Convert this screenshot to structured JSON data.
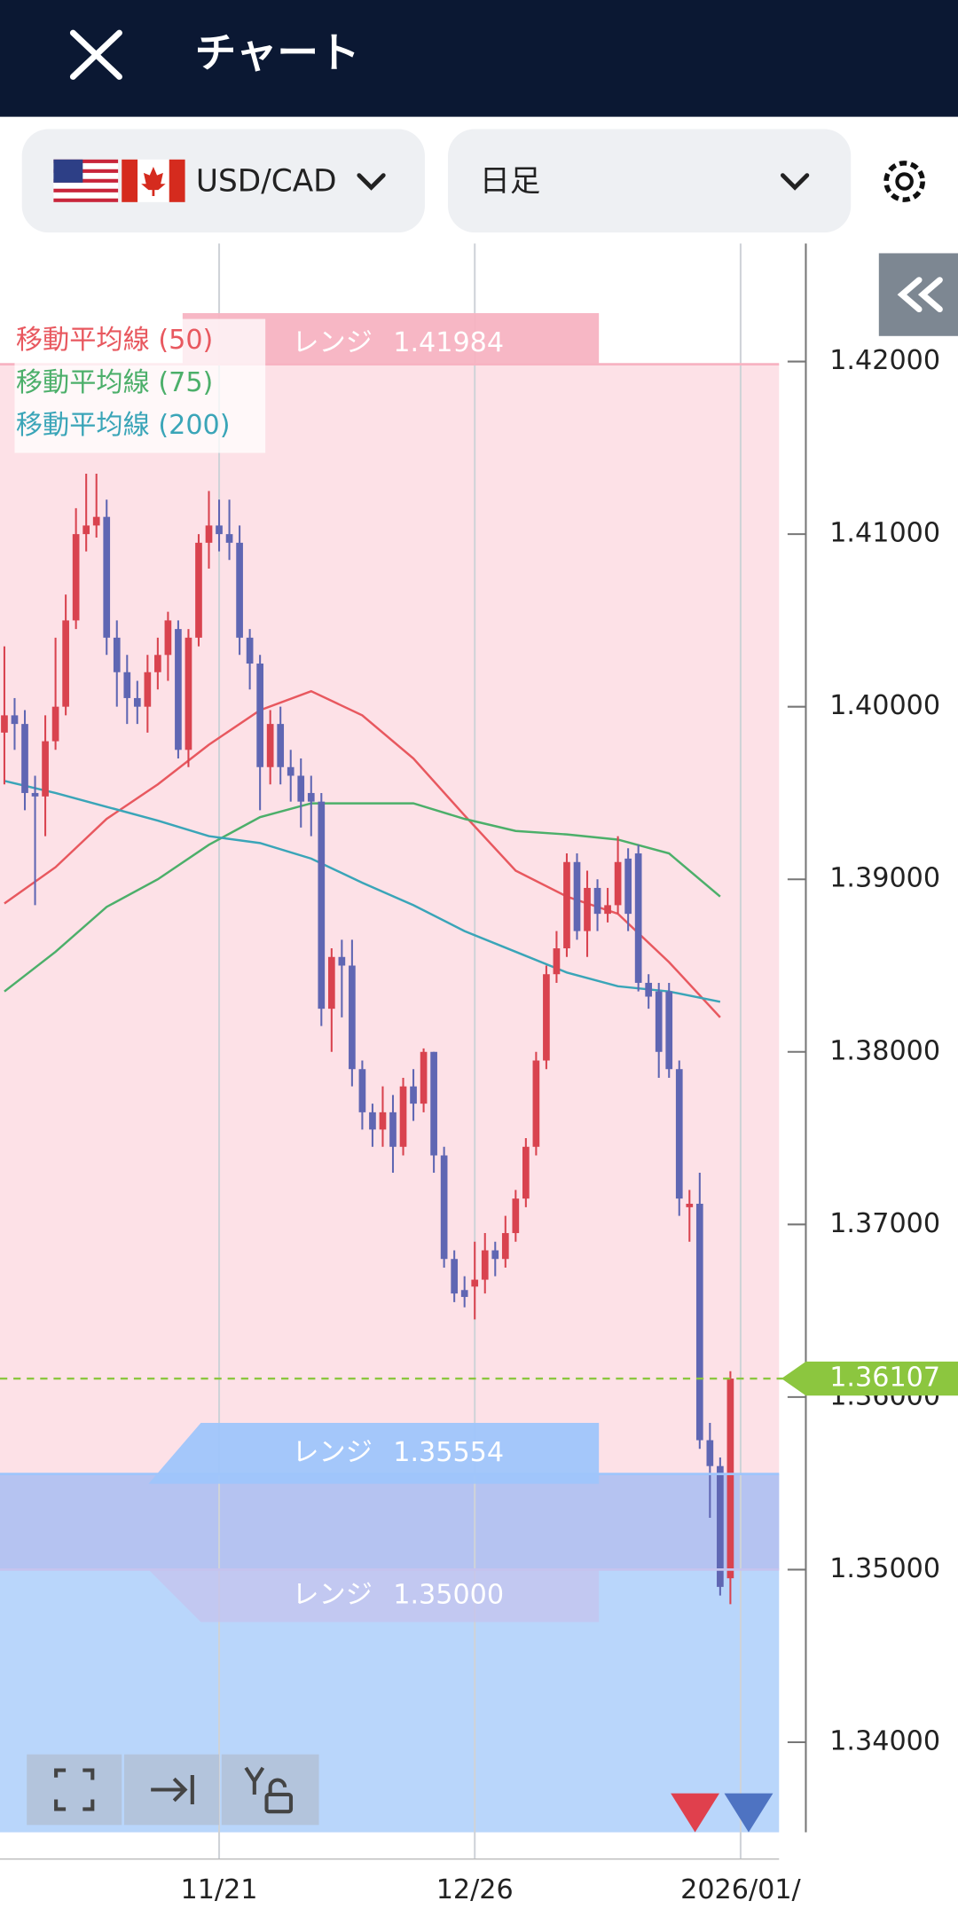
{
  "header": {
    "title": "チャート"
  },
  "toolbar": {
    "pair": "USD/CAD",
    "timeframe": "日足"
  },
  "chart_data": {
    "type": "candlestick",
    "up_color": "#d9434f",
    "down_color": "#5f66b3",
    "open": [
      1.3985,
      1.3995,
      1.399,
      1.395,
      1.3948,
      1.398,
      1.4,
      1.405,
      1.41,
      1.4105,
      1.411,
      1.404,
      1.402,
      1.4005,
      1.4,
      1.402,
      1.403,
      1.4045,
      1.3975,
      1.404,
      1.4095,
      1.4105,
      1.41,
      1.4095,
      1.404,
      1.4025,
      1.3965,
      1.399,
      1.3965,
      1.396,
      1.395,
      1.3945,
      1.3825,
      1.3855,
      1.385,
      1.379,
      1.3765,
      1.3755,
      1.3765,
      1.3745,
      1.378,
      1.377,
      1.38,
      1.374,
      1.368,
      1.3662,
      1.3664,
      1.3668,
      1.3685,
      1.368,
      1.3695,
      1.3715,
      1.3745,
      1.3795,
      1.3845,
      1.386,
      1.391,
      1.387,
      1.3895,
      1.388,
      1.3885,
      1.3912,
      1.3915,
      1.384,
      1.3835,
      1.3835,
      1.379,
      1.371,
      1.3712,
      1.3575,
      1.356,
      1.3495
    ],
    "high": [
      1.4035,
      1.4005,
      1.3998,
      1.396,
      1.3995,
      1.404,
      1.4065,
      1.4115,
      1.4135,
      1.4135,
      1.412,
      1.405,
      1.403,
      1.4015,
      1.403,
      1.404,
      1.4055,
      1.405,
      1.4045,
      1.41,
      1.4125,
      1.412,
      1.412,
      1.4105,
      1.4045,
      1.403,
      1.3998,
      1.4,
      1.3975,
      1.397,
      1.396,
      1.395,
      1.386,
      1.3865,
      1.3865,
      1.3795,
      1.377,
      1.378,
      1.3775,
      1.3785,
      1.379,
      1.3802,
      1.38,
      1.3745,
      1.3685,
      1.367,
      1.369,
      1.3695,
      1.369,
      1.3705,
      1.372,
      1.375,
      1.38,
      1.385,
      1.387,
      1.3915,
      1.3915,
      1.3905,
      1.39,
      1.3895,
      1.3925,
      1.3918,
      1.392,
      1.3845,
      1.384,
      1.384,
      1.3795,
      1.372,
      1.373,
      1.3585,
      1.3565,
      1.3615
    ],
    "low": [
      1.3955,
      1.3975,
      1.394,
      1.3885,
      1.3925,
      1.3975,
      1.3995,
      1.4045,
      1.409,
      1.4098,
      1.403,
      1.4,
      1.399,
      1.399,
      1.3985,
      1.401,
      1.4015,
      1.397,
      1.3965,
      1.4035,
      1.408,
      1.409,
      1.4085,
      1.403,
      1.401,
      1.394,
      1.3955,
      1.3955,
      1.3945,
      1.393,
      1.3925,
      1.3815,
      1.38,
      1.382,
      1.378,
      1.3755,
      1.3745,
      1.3745,
      1.373,
      1.374,
      1.376,
      1.3765,
      1.373,
      1.3675,
      1.3655,
      1.3652,
      1.3645,
      1.366,
      1.367,
      1.3675,
      1.369,
      1.371,
      1.374,
      1.379,
      1.384,
      1.3855,
      1.3865,
      1.3855,
      1.387,
      1.3875,
      1.388,
      1.387,
      1.3835,
      1.3825,
      1.3785,
      1.3785,
      1.3705,
      1.369,
      1.357,
      1.353,
      1.3485,
      1.348
    ],
    "close": [
      1.3995,
      1.399,
      1.395,
      1.3948,
      1.398,
      1.4,
      1.405,
      1.41,
      1.4105,
      1.411,
      1.404,
      1.402,
      1.4005,
      1.4,
      1.402,
      1.403,
      1.405,
      1.3975,
      1.404,
      1.4095,
      1.4105,
      1.41,
      1.4095,
      1.404,
      1.4025,
      1.3965,
      1.399,
      1.3965,
      1.396,
      1.3945,
      1.3945,
      1.3825,
      1.3855,
      1.385,
      1.379,
      1.3765,
      1.3755,
      1.3765,
      1.3745,
      1.378,
      1.377,
      1.38,
      1.374,
      1.368,
      1.366,
      1.3658,
      1.3668,
      1.3685,
      1.368,
      1.3695,
      1.3715,
      1.3745,
      1.3795,
      1.3845,
      1.386,
      1.391,
      1.387,
      1.3895,
      1.388,
      1.3885,
      1.391,
      1.388,
      1.384,
      1.3832,
      1.38,
      1.379,
      1.3715,
      1.3712,
      1.3575,
      1.356,
      1.349,
      1.36107
    ],
    "series": [
      {
        "name": "移動平均線 (50)",
        "color": "#e8585f",
        "x": [
          0,
          5,
          10,
          15,
          20,
          25,
          30,
          35,
          40,
          45,
          50,
          55,
          60,
          65,
          70
        ],
        "values": [
          1.3886,
          1.3907,
          1.3935,
          1.3955,
          1.3978,
          1.3998,
          1.4009,
          1.3995,
          1.397,
          1.3937,
          1.3905,
          1.389,
          1.388,
          1.3852,
          1.382
        ]
      },
      {
        "name": "移動平均線 (75)",
        "color": "#4caf6a",
        "x": [
          0,
          5,
          10,
          15,
          20,
          25,
          30,
          35,
          40,
          45,
          50,
          55,
          60,
          65,
          70
        ],
        "values": [
          1.3835,
          1.3858,
          1.3884,
          1.39,
          1.392,
          1.3936,
          1.3944,
          1.3944,
          1.3944,
          1.3935,
          1.3928,
          1.3926,
          1.3923,
          1.3915,
          1.389
        ]
      },
      {
        "name": "移動平均線 (200)",
        "color": "#3aa5b8",
        "x": [
          0,
          5,
          10,
          15,
          20,
          25,
          30,
          35,
          40,
          45,
          50,
          55,
          60,
          65,
          70
        ],
        "values": [
          1.3957,
          1.395,
          1.3942,
          1.3934,
          1.3925,
          1.3921,
          1.3912,
          1.3898,
          1.3885,
          1.387,
          1.3858,
          1.3846,
          1.3838,
          1.3835,
          1.3829
        ]
      }
    ],
    "ranges": [
      {
        "label": "レンジ",
        "value": 1.41984,
        "color": "#f7b3c2"
      },
      {
        "label": "レンジ",
        "value": 1.35554,
        "color": "#9fc5fb"
      },
      {
        "label": "レンジ",
        "value": 1.35,
        "value_label": "1.35000",
        "color": "#c6c3ee"
      }
    ],
    "current_price": {
      "value": 1.36107,
      "color": "#8cc63f"
    },
    "xlim": [
      -0.43,
      75.76
    ],
    "xticks": [
      {
        "value": 21,
        "label": "11/21"
      },
      {
        "value": 46,
        "label": "12/26"
      },
      {
        "value": 72,
        "label": "2026/01/"
      }
    ],
    "ylim": [
      1.33478,
      1.42684
    ],
    "yticks": [
      {
        "value": 1.34,
        "label": "1.34000"
      },
      {
        "value": 1.35,
        "label": "1.35000"
      },
      {
        "value": 1.36,
        "label": "1.36000"
      },
      {
        "value": 1.37,
        "label": "1.37000"
      },
      {
        "value": 1.38,
        "label": "1.38000"
      },
      {
        "value": 1.39,
        "label": "1.39000"
      },
      {
        "value": 1.4,
        "label": "1.40000"
      },
      {
        "value": 1.41,
        "label": "1.41000"
      },
      {
        "value": 1.42,
        "label": "1.42000"
      }
    ],
    "grid": true
  }
}
